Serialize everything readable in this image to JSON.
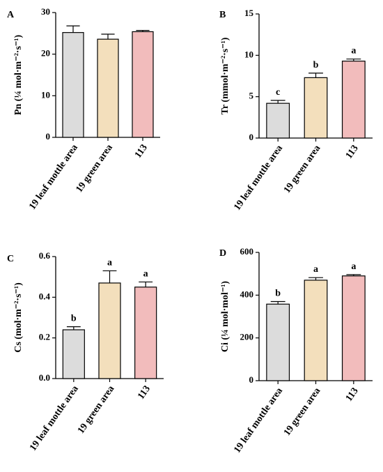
{
  "chart_data": [
    {
      "panel": "A",
      "type": "bar",
      "categories": [
        "19 leaf mottle area",
        "19 green area",
        "113"
      ],
      "values": [
        25.2,
        23.6,
        25.4
      ],
      "errors": [
        1.6,
        1.2,
        0.3
      ],
      "significance": [
        "",
        "",
        ""
      ],
      "colors": [
        "#dcdcdc",
        "#f3dfbc",
        "#f2bcbc"
      ],
      "ylabel": "Pn (¼ mol·m⁻²·s⁻¹)",
      "ylim": [
        0,
        30
      ],
      "yticks": [
        0,
        10,
        20,
        30
      ],
      "xlabel": ""
    },
    {
      "panel": "B",
      "type": "bar",
      "categories": [
        "19 leaf mottle area",
        "19 green area",
        "113"
      ],
      "values": [
        4.2,
        7.3,
        9.3
      ],
      "errors": [
        0.35,
        0.55,
        0.25
      ],
      "significance": [
        "c",
        "b",
        "a"
      ],
      "colors": [
        "#dcdcdc",
        "#f3dfbc",
        "#f2bcbc"
      ],
      "ylabel": "Tr (mmol·m⁻²·s⁻¹)",
      "ylim": [
        0,
        15
      ],
      "yticks": [
        0,
        5,
        10,
        15
      ],
      "xlabel": ""
    },
    {
      "panel": "C",
      "type": "bar",
      "categories": [
        "19 leaf mottle area",
        "19 green area",
        "113"
      ],
      "values": [
        0.24,
        0.47,
        0.45
      ],
      "errors": [
        0.015,
        0.06,
        0.025
      ],
      "significance": [
        "b",
        "a",
        "a"
      ],
      "colors": [
        "#dcdcdc",
        "#f3dfbc",
        "#f2bcbc"
      ],
      "ylabel": "Cs (mol·m⁻²·s⁻¹)",
      "ylim": [
        0,
        0.6
      ],
      "yticks": [
        0.0,
        0.2,
        0.4,
        0.6
      ],
      "ytick_labels": [
        "0.0",
        "0.2",
        "0.4",
        "0.6"
      ],
      "xlabel": ""
    },
    {
      "panel": "D",
      "type": "bar",
      "categories": [
        "19 leaf mottle area",
        "19 green area",
        "113"
      ],
      "values": [
        358,
        470,
        490
      ],
      "errors": [
        12,
        12,
        6
      ],
      "significance": [
        "b",
        "a",
        "a"
      ],
      "colors": [
        "#dcdcdc",
        "#f3dfbc",
        "#f2bcbc"
      ],
      "ylabel": "Ci (¼ mol·mol⁻¹)",
      "ylim": [
        0,
        600
      ],
      "yticks": [
        0,
        200,
        400,
        600
      ],
      "xlabel": ""
    }
  ]
}
